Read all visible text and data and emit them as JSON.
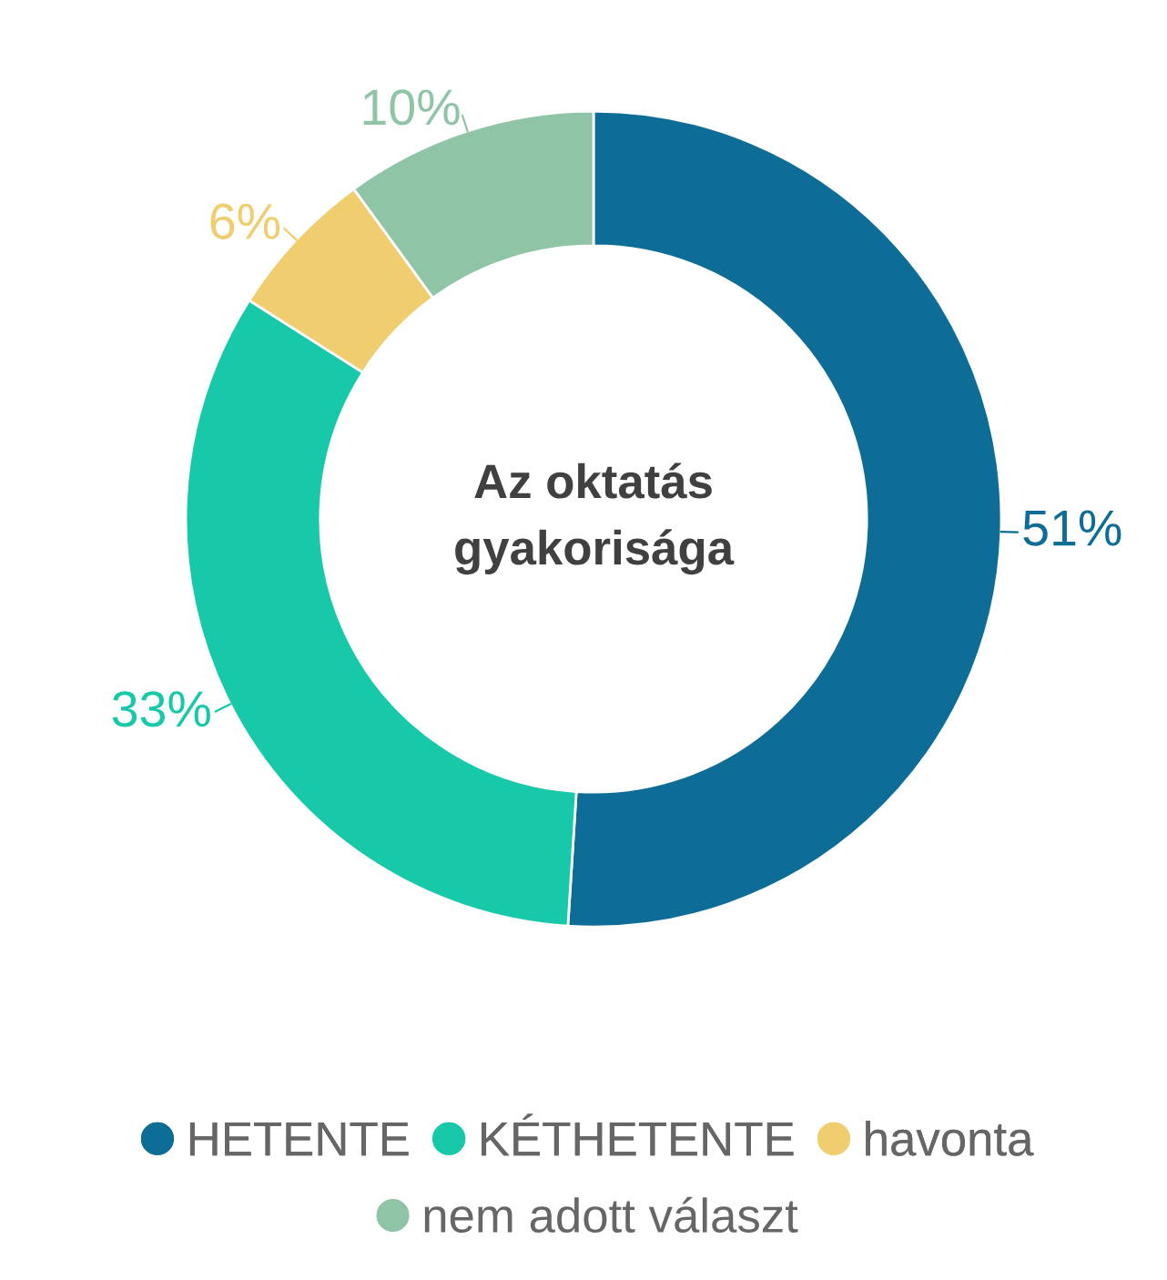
{
  "chart_data": {
    "type": "donut",
    "title": "Az oktatás gyakorisága",
    "categories": [
      "HETENTE",
      "KÉTHETENTE",
      "havonta",
      "nem adott választ"
    ],
    "values": [
      51,
      33,
      6,
      10
    ],
    "colors": [
      "#0e6d96",
      "#17c9a8",
      "#f0cd6e",
      "#8fc4a6"
    ],
    "value_labels": [
      "51%",
      "33%",
      "6%",
      "10%"
    ],
    "legend": "bottom"
  }
}
